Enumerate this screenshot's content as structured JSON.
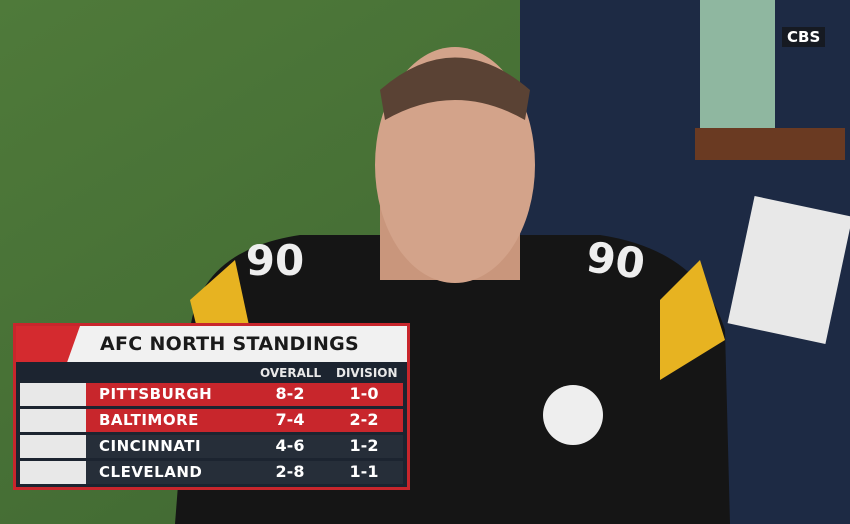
{
  "broadcast": {
    "network": "CBS",
    "jersey_number": "90"
  },
  "standings": {
    "title": "AFC NORTH STANDINGS",
    "columns": [
      "OVERALL",
      "DIVISION"
    ],
    "rows": [
      [
        "PITTSBURGH",
        "8-2",
        "1-0"
      ],
      [
        "BALTIMORE",
        "7-4",
        "2-2"
      ],
      [
        "CINCINNATI",
        "4-6",
        "1-2"
      ],
      [
        "CLEVELAND",
        "2-8",
        "1-1"
      ]
    ]
  }
}
